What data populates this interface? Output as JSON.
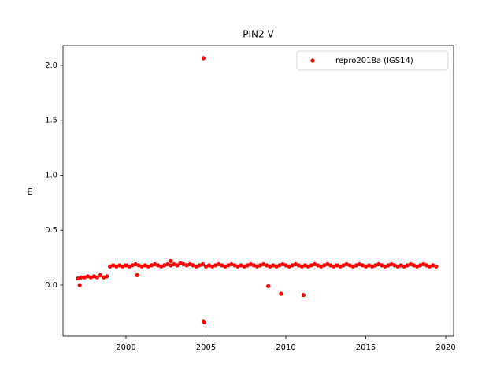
{
  "chart_data": {
    "type": "scatter",
    "title": "PIN2 V",
    "y_label": "m",
    "xlim": [
      1996.06,
      2020.49
    ],
    "ylim": [
      -0.466,
      2.179
    ],
    "xticks": [
      2000,
      2005,
      2010,
      2015,
      2020
    ],
    "yticks": [
      {
        "value": 0,
        "label": "0.0"
      },
      {
        "value": 0.5,
        "label": "0.5"
      },
      {
        "value": 1,
        "label": "1.0"
      },
      {
        "value": 1.5,
        "label": "1.5"
      },
      {
        "value": 2,
        "label": "2.0"
      }
    ],
    "legend": "upper right",
    "series": [
      {
        "name": "repro2018a (IGS14)",
        "color": "#ff0000",
        "x": [
          1997.0,
          1997.2,
          1997.4,
          1997.6,
          1997.8,
          1998.0,
          1998.2,
          1998.4,
          1998.6,
          1998.8,
          1999.0,
          1999.2,
          1999.4,
          1999.6,
          1999.8,
          2000.0,
          2000.2,
          2000.4,
          2000.6,
          2000.8,
          2001.0,
          2001.2,
          2001.4,
          2001.6,
          2001.8,
          2002.0,
          2002.2,
          2002.4,
          2002.6,
          2002.8,
          2003.0,
          2003.2,
          2003.4,
          2003.6,
          2003.8,
          2004.0,
          2004.2,
          2004.4,
          2004.6,
          2004.8,
          2005.0,
          2005.2,
          2005.4,
          2005.6,
          2005.8,
          2006.0,
          2006.2,
          2006.4,
          2006.6,
          2006.8,
          2007.0,
          2007.2,
          2007.4,
          2007.6,
          2007.8,
          2008.0,
          2008.2,
          2008.4,
          2008.6,
          2008.8,
          2009.0,
          2009.2,
          2009.4,
          2009.6,
          2009.8,
          2010.0,
          2010.2,
          2010.4,
          2010.6,
          2010.8,
          2011.0,
          2011.2,
          2011.4,
          2011.6,
          2011.8,
          2012.0,
          2012.2,
          2012.4,
          2012.6,
          2012.8,
          2013.0,
          2013.2,
          2013.4,
          2013.6,
          2013.8,
          2014.0,
          2014.2,
          2014.4,
          2014.6,
          2014.8,
          2015.0,
          2015.2,
          2015.4,
          2015.6,
          2015.8,
          2016.0,
          2016.2,
          2016.4,
          2016.6,
          2016.8,
          2017.0,
          2017.2,
          2017.4,
          2017.6,
          2017.8,
          2018.0,
          2018.2,
          2018.4,
          2018.6,
          2018.8,
          2019.0,
          2019.2,
          2019.4,
          1997.1,
          2000.7,
          2002.8,
          2004.85,
          2004.85,
          2004.9,
          2008.9,
          2009.7,
          2011.1
        ],
        "values": [
          0.06,
          0.07,
          0.07,
          0.08,
          0.07,
          0.08,
          0.07,
          0.09,
          0.07,
          0.08,
          0.17,
          0.18,
          0.17,
          0.18,
          0.17,
          0.18,
          0.17,
          0.18,
          0.19,
          0.18,
          0.17,
          0.18,
          0.17,
          0.18,
          0.19,
          0.18,
          0.17,
          0.18,
          0.19,
          0.18,
          0.19,
          0.18,
          0.2,
          0.19,
          0.18,
          0.19,
          0.18,
          0.17,
          0.18,
          0.19,
          0.17,
          0.18,
          0.17,
          0.18,
          0.19,
          0.18,
          0.17,
          0.18,
          0.19,
          0.18,
          0.17,
          0.18,
          0.17,
          0.18,
          0.19,
          0.18,
          0.17,
          0.18,
          0.19,
          0.18,
          0.17,
          0.18,
          0.17,
          0.18,
          0.19,
          0.18,
          0.17,
          0.18,
          0.19,
          0.18,
          0.17,
          0.18,
          0.17,
          0.18,
          0.19,
          0.18,
          0.17,
          0.18,
          0.19,
          0.18,
          0.17,
          0.18,
          0.17,
          0.18,
          0.19,
          0.18,
          0.17,
          0.18,
          0.19,
          0.18,
          0.17,
          0.18,
          0.17,
          0.18,
          0.19,
          0.18,
          0.17,
          0.18,
          0.19,
          0.18,
          0.17,
          0.18,
          0.17,
          0.18,
          0.19,
          0.18,
          0.17,
          0.18,
          0.19,
          0.18,
          0.17,
          0.18,
          0.17,
          0.0,
          0.09,
          0.22,
          2.065,
          -0.33,
          -0.34,
          -0.01,
          -0.08,
          -0.09
        ]
      }
    ]
  }
}
